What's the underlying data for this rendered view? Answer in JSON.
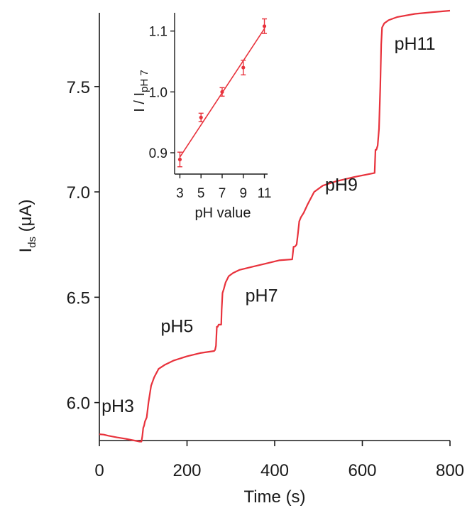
{
  "chart_data": [
    {
      "type": "line",
      "xlabel": "Time (s)",
      "ylabel_main": "I",
      "ylabel_sub": "ds",
      "ylabel_unit": " (μA)",
      "xlim": [
        0,
        800
      ],
      "ylim": [
        5.82,
        7.85
      ],
      "xticks": [
        0,
        200,
        400,
        600,
        800
      ],
      "xtick_labels": [
        "0",
        "200",
        "400",
        "600",
        "800"
      ],
      "yticks": [
        6.0,
        6.5,
        7.0,
        7.5
      ],
      "ytick_labels": [
        "6.0",
        "6.5",
        "7.0",
        "7.5"
      ],
      "grid": false,
      "line_color": "#e8323c",
      "series": [
        {
          "x": [
            0,
            10,
            20,
            40,
            60,
            80,
            92,
            96,
            98,
            100,
            102,
            104,
            108,
            112,
            118,
            125,
            135,
            150,
            170,
            200,
            230,
            262,
            264,
            266,
            268,
            270,
            272,
            278,
            279,
            281,
            284,
            288,
            295,
            305,
            320,
            350,
            380,
            410,
            440,
            443,
            446,
            450,
            453,
            456,
            460,
            466,
            475,
            490,
            510,
            540,
            580,
            628,
            630,
            632,
            635,
            638,
            641,
            643,
            645,
            650,
            660,
            680,
            720,
            760,
            800
          ],
          "values": [
            5.85,
            5.848,
            5.843,
            5.835,
            5.828,
            5.82,
            5.815,
            5.815,
            5.84,
            5.88,
            5.89,
            5.91,
            5.93,
            6.0,
            6.08,
            6.12,
            6.16,
            6.18,
            6.2,
            6.22,
            6.235,
            6.245,
            6.25,
            6.27,
            6.36,
            6.36,
            6.37,
            6.37,
            6.44,
            6.52,
            6.54,
            6.57,
            6.6,
            6.615,
            6.63,
            6.645,
            6.66,
            6.675,
            6.68,
            6.74,
            6.74,
            6.75,
            6.8,
            6.86,
            6.88,
            6.9,
            6.94,
            7.0,
            7.03,
            7.05,
            7.07,
            7.09,
            7.2,
            7.2,
            7.22,
            7.3,
            7.5,
            7.7,
            7.78,
            7.8,
            7.815,
            7.83,
            7.845,
            7.853,
            7.86
          ]
        }
      ],
      "annotations": [
        {
          "text": "pH3",
          "x": 5,
          "y": 5.955
        },
        {
          "text": "pH5",
          "x": 140,
          "y": 6.335
        },
        {
          "text": "pH7",
          "x": 333,
          "y": 6.48
        },
        {
          "text": "pH9",
          "x": 515,
          "y": 7.005
        },
        {
          "text": "pH11",
          "x": 673,
          "y": 7.675
        }
      ]
    },
    {
      "type": "scatter",
      "inset": true,
      "xlabel": "pH value",
      "ylabel_main": "I / I",
      "ylabel_sub": "pH 7",
      "xlim": [
        2.5,
        11.3
      ],
      "ylim": [
        0.865,
        1.13
      ],
      "xticks": [
        3,
        5,
        7,
        9,
        11
      ],
      "xtick_labels": [
        "3",
        "5",
        "7",
        "9",
        "11"
      ],
      "yticks": [
        0.9,
        1.0,
        1.1
      ],
      "ytick_labels": [
        "0.9",
        "1.0",
        "1.1"
      ],
      "grid": false,
      "line_color": "#e8323c",
      "x": [
        3,
        5,
        7,
        9,
        11
      ],
      "values": [
        0.889,
        0.958,
        1.0,
        1.04,
        1.108
      ],
      "errors": [
        0.012,
        0.007,
        0.007,
        0.012,
        0.012
      ],
      "fit_line": {
        "x": [
          3,
          11
        ],
        "y": [
          0.893,
          1.104
        ]
      }
    }
  ]
}
